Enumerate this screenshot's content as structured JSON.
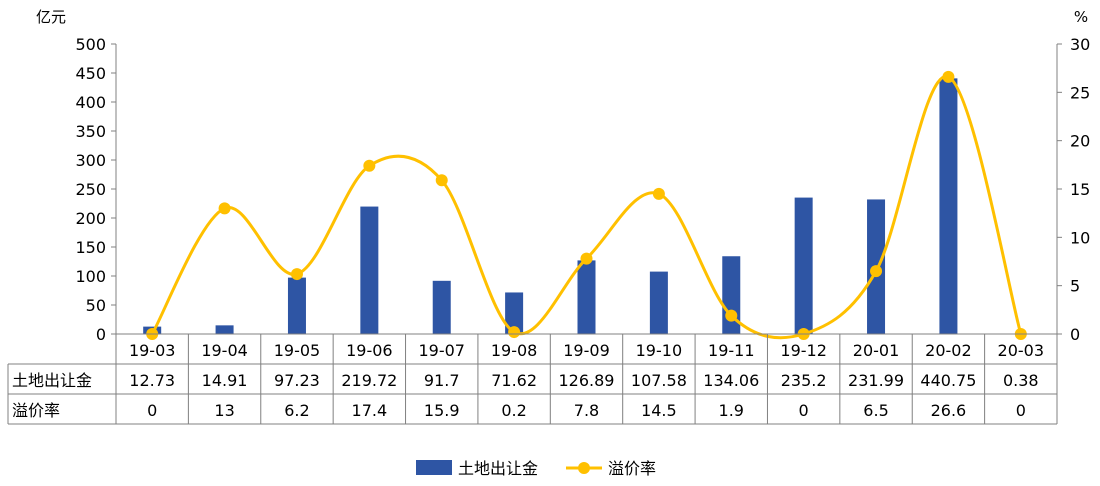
{
  "chart_data": {
    "type": "bar",
    "categories": [
      "19-03",
      "19-04",
      "19-05",
      "19-06",
      "19-07",
      "19-08",
      "19-09",
      "19-10",
      "19-11",
      "19-12",
      "20-01",
      "20-02",
      "20-03"
    ],
    "series": [
      {
        "name": "土地出让金",
        "type": "bar",
        "axis": "left",
        "color": "#2E55A4",
        "values": [
          12.73,
          14.91,
          97.23,
          219.72,
          91.7,
          71.62,
          126.89,
          107.58,
          134.06,
          235.2,
          231.99,
          440.75,
          0.38
        ]
      },
      {
        "name": "溢价率",
        "type": "line",
        "axis": "right",
        "color": "#FFC000",
        "values": [
          0,
          13,
          6.2,
          17.4,
          15.9,
          0.2,
          7.8,
          14.5,
          1.9,
          0,
          6.5,
          26.6,
          0
        ]
      }
    ],
    "table": {
      "row_headers": [
        "土地出让金",
        "溢价率"
      ],
      "rows": [
        [
          "12.73",
          "14.91",
          "97.23",
          "219.72",
          "91.7",
          "71.62",
          "126.89",
          "107.58",
          "134.06",
          "235.2",
          "231.99",
          "440.75",
          "0.38"
        ],
        [
          "0",
          "13",
          "6.2",
          "17.4",
          "15.9",
          "0.2",
          "7.8",
          "14.5",
          "1.9",
          "0",
          "6.5",
          "26.6",
          "0"
        ]
      ]
    },
    "left_axis": {
      "unit": "亿元",
      "ylim": [
        0,
        500
      ],
      "ticks": [
        "0",
        "50",
        "100",
        "150",
        "200",
        "250",
        "300",
        "350",
        "400",
        "450",
        "500"
      ]
    },
    "right_axis": {
      "unit": "%",
      "ylim": [
        0,
        30
      ],
      "ticks": [
        "0",
        "5",
        "10",
        "15",
        "20",
        "25",
        "30"
      ]
    },
    "legend_position": "bottom-center",
    "grid": false
  }
}
